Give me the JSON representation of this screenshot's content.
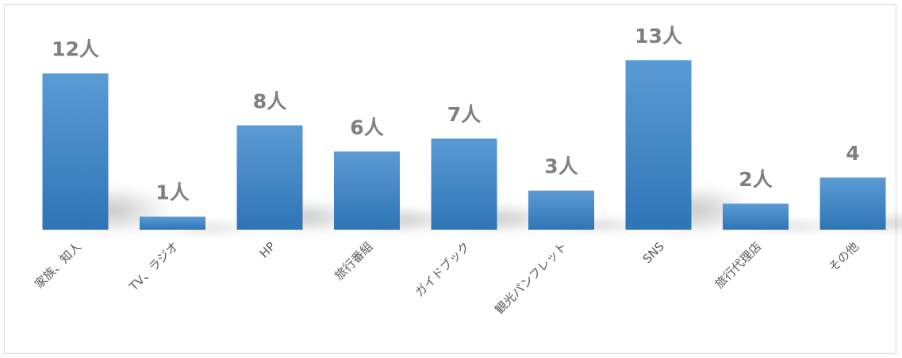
{
  "chart_data": {
    "type": "bar",
    "categories": [
      "家族、知人",
      "TV、ラジオ",
      "HP",
      "旅行番組",
      "ガイドブック",
      "観光パンフレット",
      "SNS",
      "旅行代理店",
      "その他"
    ],
    "values": [
      12,
      1,
      8,
      6,
      7,
      3,
      13,
      2,
      4
    ],
    "data_labels": [
      "12人",
      "1人",
      "8人",
      "6人",
      "7人",
      "3人",
      "13人",
      "2人",
      "4"
    ],
    "title": "",
    "xlabel": "",
    "ylabel": "",
    "ylim": [
      0,
      15.5
    ],
    "grid": false,
    "legend": "none",
    "colors": {
      "bar_top": "#5b9bd5",
      "bar_bottom": "#2e75b6",
      "label": "#7f7f7f",
      "axis_text": "#595959"
    }
  }
}
